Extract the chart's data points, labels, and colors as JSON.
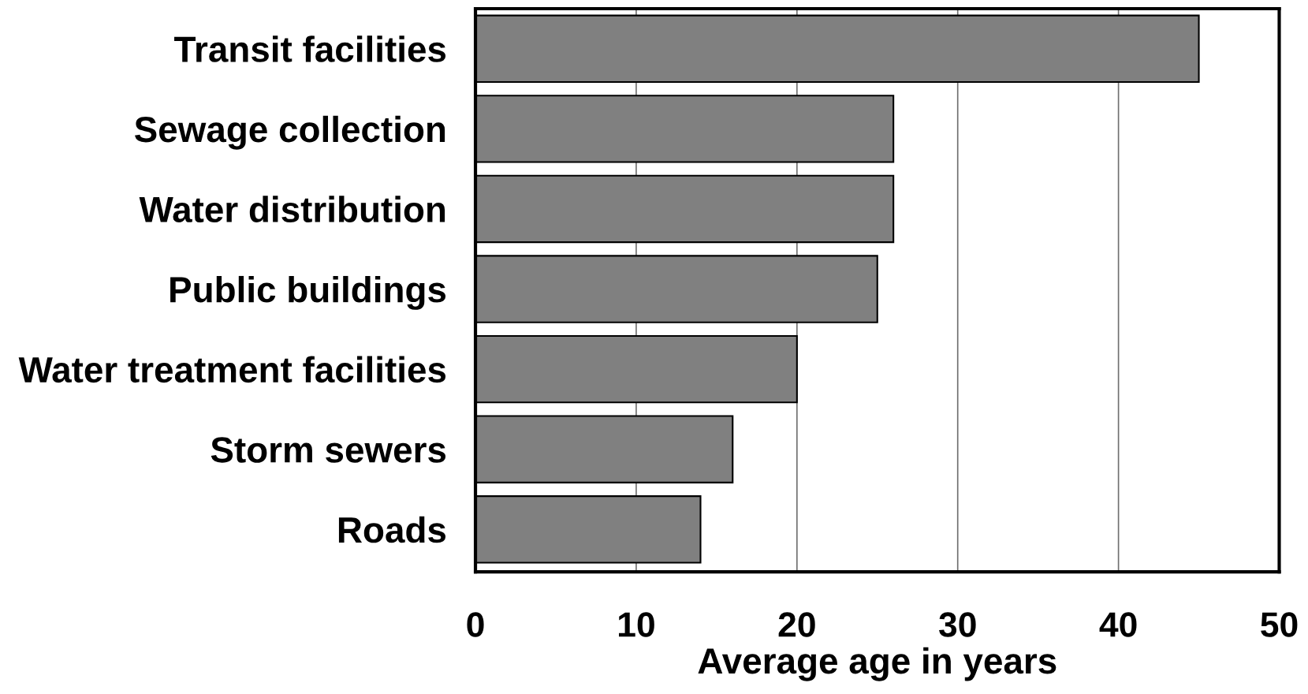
{
  "chart_data": {
    "type": "bar",
    "orientation": "horizontal",
    "categories": [
      "Transit facilities",
      "Sewage collection",
      "Water distribution",
      "Public buildings",
      "Water treatment facilities",
      "Storm sewers",
      "Roads"
    ],
    "values": [
      45,
      26,
      26,
      25,
      20,
      16,
      14
    ],
    "color": "#808080",
    "xlabel": "Average age in years",
    "xlim": [
      0,
      50
    ],
    "xticks": [
      0,
      10,
      20,
      30,
      40,
      50
    ],
    "grid": "x"
  }
}
